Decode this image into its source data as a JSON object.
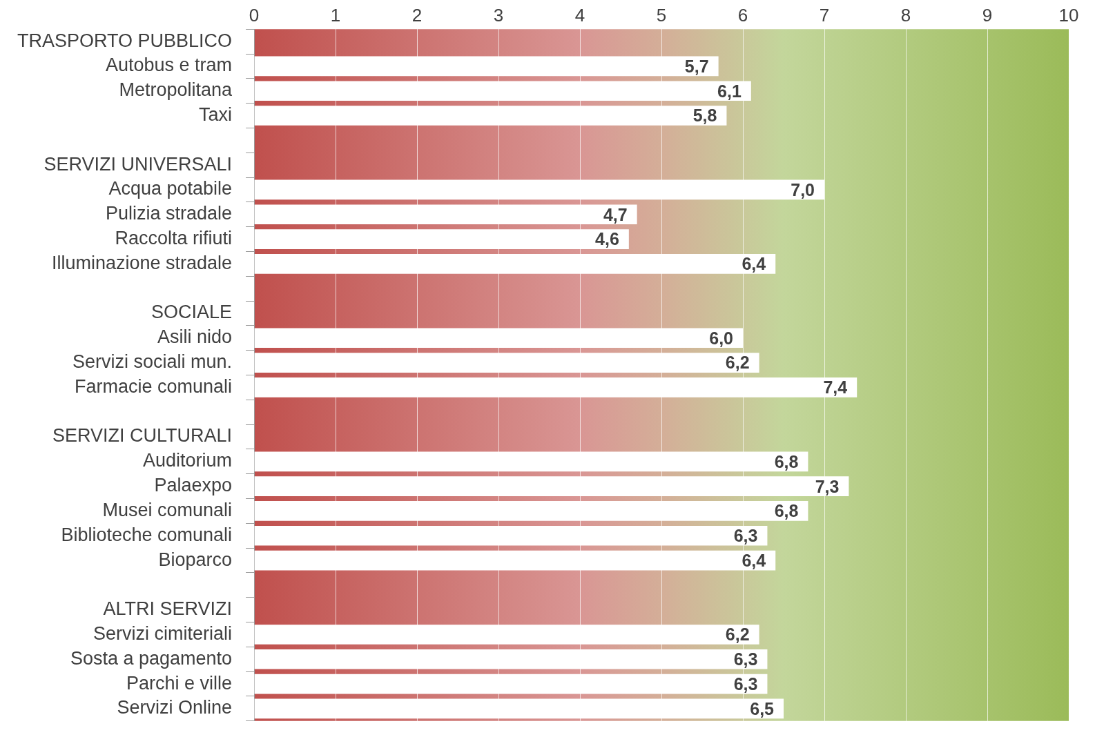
{
  "chart_data": {
    "type": "bar",
    "orientation": "horizontal",
    "color": "#ffffff",
    "categories": [
      "TRASPORTO PUBBLICO",
      "Autobus e tram",
      "Metropolitana",
      "Taxi",
      null,
      "SERVIZI UNIVERSALI",
      "Acqua potabile",
      "Pulizia stradale",
      "Raccolta rifiuti",
      "Illuminazione stradale",
      null,
      "SOCIALE",
      "Asili nido",
      "Servizi sociali mun.",
      "Farmacie comunali",
      null,
      "SERVIZI CULTURALI",
      "Auditorium",
      "Palaexpo",
      "Musei comunali",
      "Biblioteche comunali",
      "Bioparco",
      null,
      "ALTRI SERVIZI",
      "Servizi cimiteriali",
      "Sosta a pagamento",
      "Parchi e ville",
      "Servizi Online"
    ],
    "values": [
      null,
      5.7,
      6.1,
      5.8,
      null,
      null,
      7.0,
      4.7,
      4.6,
      6.4,
      null,
      null,
      6.0,
      6.2,
      7.4,
      null,
      null,
      6.8,
      7.3,
      6.8,
      6.3,
      6.4,
      null,
      null,
      6.2,
      6.3,
      6.3,
      6.5
    ],
    "value_labels": [
      null,
      "5,7",
      "6,1",
      "5,8",
      null,
      null,
      "7,0",
      "4,7",
      "4,6",
      "6,4",
      null,
      null,
      "6,0",
      "6,2",
      "7,4",
      null,
      null,
      "6,8",
      "7,3",
      "6,8",
      "6,3",
      "6,4",
      null,
      null,
      "6,2",
      "6,3",
      "6,3",
      "6,5"
    ],
    "xlim": [
      0,
      10
    ],
    "xticks": [
      0,
      1,
      2,
      3,
      4,
      5,
      6,
      7,
      8,
      9,
      10
    ],
    "grid": "x",
    "legend": false
  }
}
